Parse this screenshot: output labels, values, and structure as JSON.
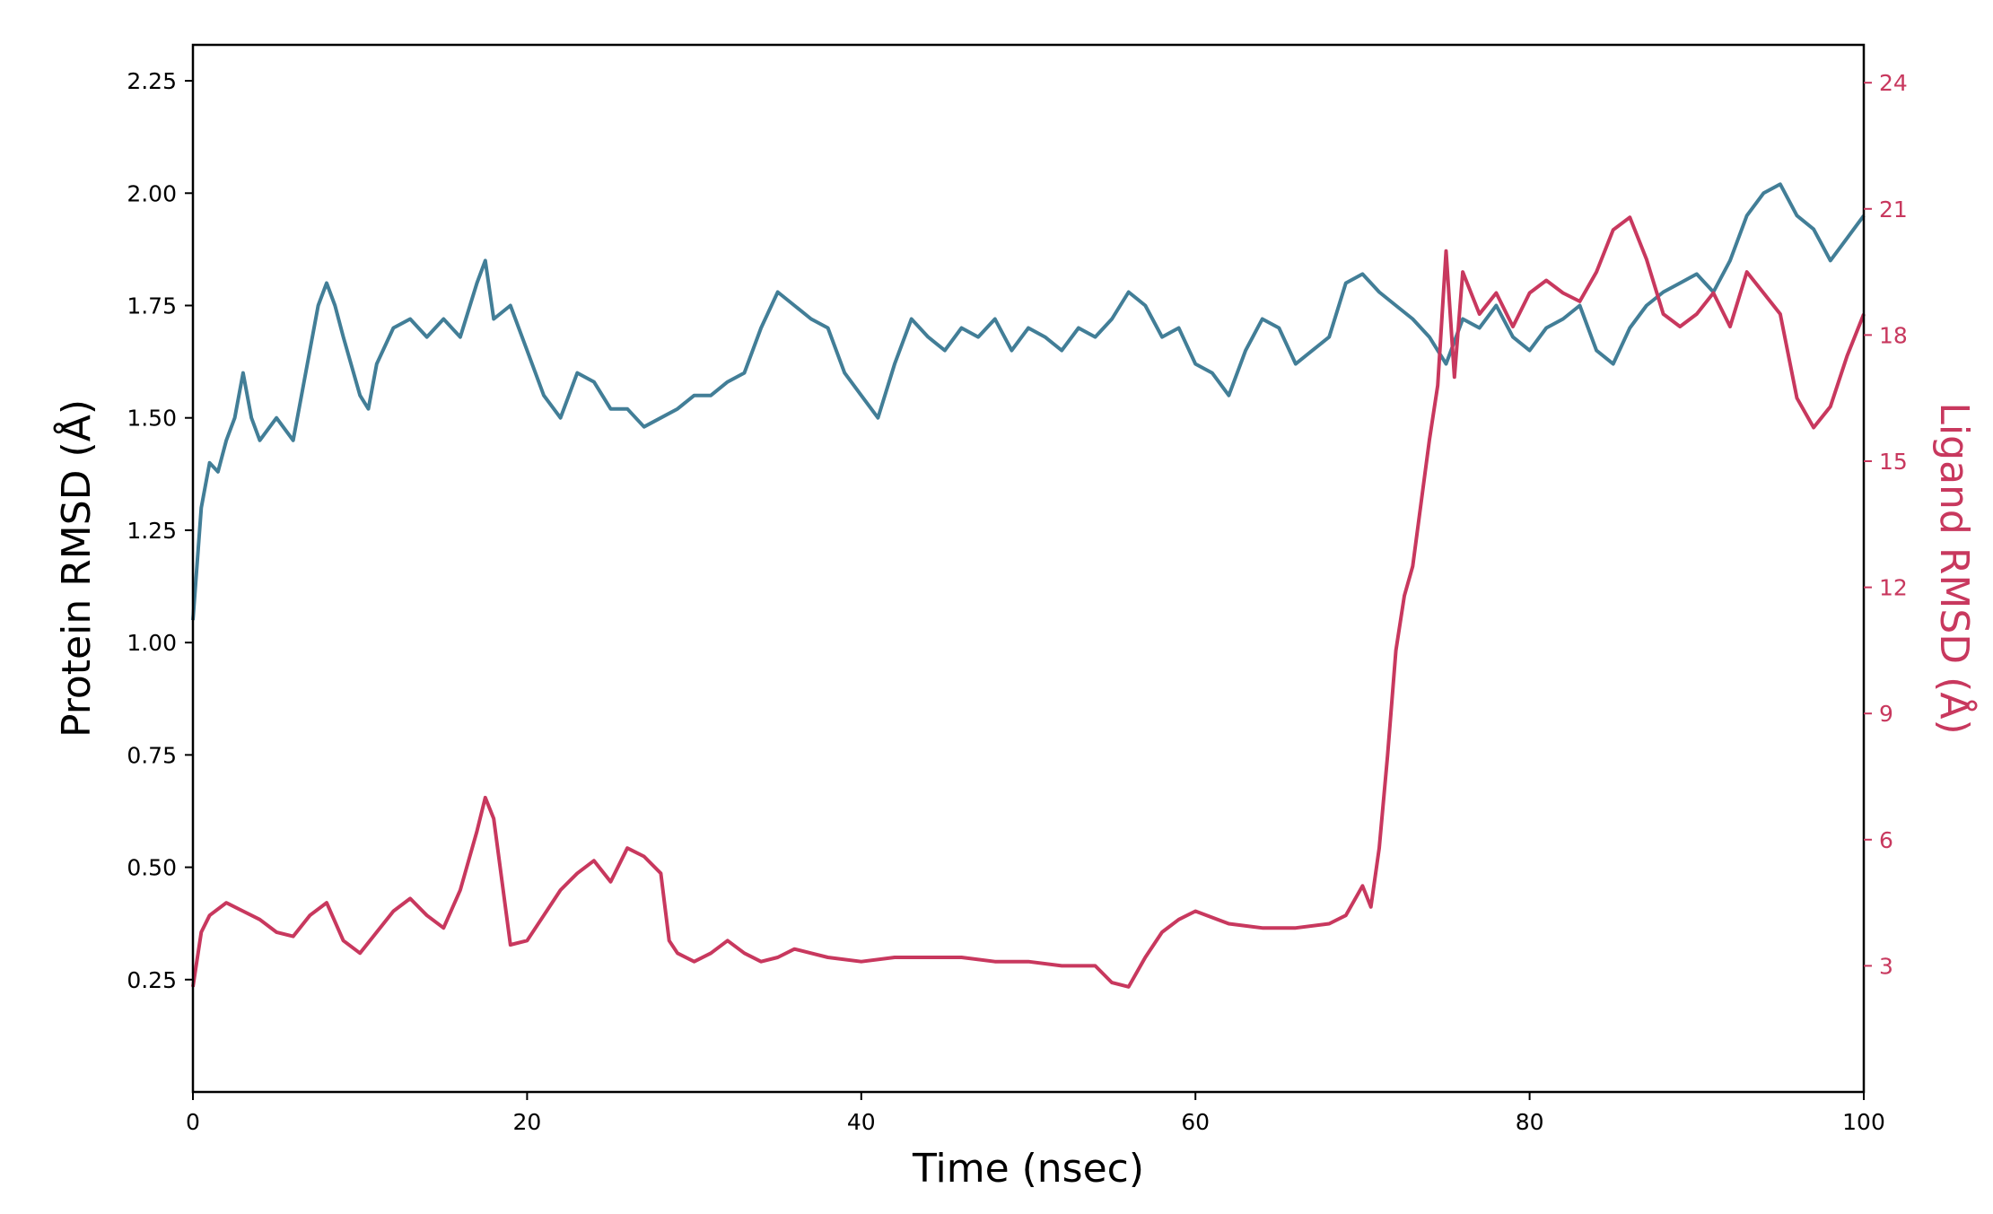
{
  "chart_data": {
    "type": "line",
    "title": "",
    "xlabel": "Time (nsec)",
    "ylabel_left": "Protein RMSD (Å)",
    "ylabel_right": "Ligand RMSD (Å)",
    "xlim": [
      0,
      100
    ],
    "ylim_left": [
      0.0,
      2.33
    ],
    "ylim_right": [
      0.0,
      24.9
    ],
    "x_ticks": [
      "0",
      "20",
      "40",
      "60",
      "80",
      "100"
    ],
    "y_left_ticks": [
      "0.25",
      "0.50",
      "0.75",
      "1.00",
      "1.25",
      "1.50",
      "1.75",
      "2.00",
      "2.25"
    ],
    "y_right_ticks": [
      "3",
      "6",
      "9",
      "12",
      "15",
      "18",
      "21",
      "24"
    ],
    "grid": false,
    "legend": "none",
    "colors": {
      "protein": "#427e97",
      "ligand": "#c8385e",
      "axis_right": "#c8385e"
    },
    "series": [
      {
        "axis": "left",
        "color": "#427e97",
        "x": [
          0,
          0.5,
          1,
          1.5,
          2,
          2.5,
          3,
          3.5,
          4,
          5,
          6,
          7,
          7.5,
          8,
          8.5,
          9,
          10,
          10.5,
          11,
          12,
          13,
          14,
          15,
          16,
          17,
          17.5,
          18,
          19,
          20,
          21,
          22,
          23,
          24,
          25,
          26,
          27,
          28,
          29,
          30,
          31,
          32,
          33,
          34,
          35,
          36,
          37,
          38,
          39,
          40,
          41,
          42,
          43,
          44,
          45,
          46,
          47,
          48,
          49,
          50,
          51,
          52,
          53,
          54,
          55,
          56,
          57,
          58,
          59,
          60,
          61,
          62,
          63,
          64,
          65,
          66,
          67,
          68,
          69,
          70,
          71,
          72,
          73,
          74,
          75,
          76,
          77,
          78,
          79,
          80,
          81,
          82,
          83,
          84,
          85,
          86,
          87,
          88,
          89,
          90,
          91,
          92,
          93,
          94,
          95,
          96,
          97,
          98,
          99,
          100
        ],
        "y": [
          1.05,
          1.3,
          1.4,
          1.38,
          1.45,
          1.5,
          1.6,
          1.5,
          1.45,
          1.5,
          1.45,
          1.65,
          1.75,
          1.8,
          1.75,
          1.68,
          1.55,
          1.52,
          1.62,
          1.7,
          1.72,
          1.68,
          1.72,
          1.68,
          1.8,
          1.85,
          1.72,
          1.75,
          1.65,
          1.55,
          1.5,
          1.6,
          1.58,
          1.52,
          1.52,
          1.48,
          1.5,
          1.52,
          1.55,
          1.55,
          1.58,
          1.6,
          1.7,
          1.78,
          1.75,
          1.72,
          1.7,
          1.6,
          1.55,
          1.5,
          1.62,
          1.72,
          1.68,
          1.65,
          1.7,
          1.68,
          1.72,
          1.65,
          1.7,
          1.68,
          1.65,
          1.7,
          1.68,
          1.72,
          1.78,
          1.75,
          1.68,
          1.7,
          1.62,
          1.6,
          1.55,
          1.65,
          1.72,
          1.7,
          1.62,
          1.65,
          1.68,
          1.8,
          1.82,
          1.78,
          1.75,
          1.72,
          1.68,
          1.62,
          1.72,
          1.7,
          1.75,
          1.68,
          1.65,
          1.7,
          1.72,
          1.75,
          1.65,
          1.62,
          1.7,
          1.75,
          1.78,
          1.8,
          1.82,
          1.78,
          1.85,
          1.95,
          2.0,
          2.02,
          1.95,
          1.92,
          1.85,
          1.9,
          1.95
        ]
      },
      {
        "axis": "right",
        "color": "#c8385e",
        "x": [
          0,
          0.5,
          1,
          2,
          3,
          4,
          5,
          6,
          7,
          8,
          9,
          10,
          11,
          12,
          13,
          14,
          15,
          16,
          17,
          17.5,
          18,
          19,
          20,
          21,
          22,
          23,
          24,
          25,
          26,
          27,
          28,
          28.5,
          29,
          30,
          31,
          32,
          33,
          34,
          35,
          36,
          37,
          38,
          40,
          42,
          44,
          46,
          48,
          50,
          52,
          54,
          55,
          56,
          57,
          58,
          59,
          60,
          62,
          64,
          66,
          68,
          69,
          70,
          70.5,
          71,
          71.5,
          72,
          72.5,
          73,
          73.5,
          74,
          74.5,
          75,
          75.5,
          76,
          77,
          78,
          79,
          80,
          81,
          82,
          83,
          84,
          85,
          86,
          87,
          88,
          89,
          90,
          91,
          92,
          93,
          94,
          95,
          96,
          97,
          98,
          99,
          100
        ],
        "y": [
          2.5,
          3.8,
          4.2,
          4.5,
          4.3,
          4.1,
          3.8,
          3.7,
          4.2,
          4.5,
          3.6,
          3.3,
          3.8,
          4.3,
          4.6,
          4.2,
          3.9,
          4.8,
          6.2,
          7.0,
          6.5,
          3.5,
          3.6,
          4.2,
          4.8,
          5.2,
          5.5,
          5.0,
          5.8,
          5.6,
          5.2,
          3.6,
          3.3,
          3.1,
          3.3,
          3.6,
          3.3,
          3.1,
          3.2,
          3.4,
          3.3,
          3.2,
          3.1,
          3.2,
          3.2,
          3.2,
          3.1,
          3.1,
          3.0,
          3.0,
          2.6,
          2.5,
          3.2,
          3.8,
          4.1,
          4.3,
          4.0,
          3.9,
          3.9,
          4.0,
          4.2,
          4.9,
          4.4,
          5.8,
          8.0,
          10.5,
          11.8,
          12.5,
          14.0,
          15.5,
          16.8,
          20.0,
          17.0,
          19.5,
          18.5,
          19.0,
          18.2,
          19.0,
          19.3,
          19.0,
          18.8,
          19.5,
          20.5,
          20.8,
          19.8,
          18.5,
          18.2,
          18.5,
          19.0,
          18.2,
          19.5,
          19.0,
          18.5,
          16.5,
          15.8,
          16.3,
          17.5,
          18.5
        ]
      }
    ]
  }
}
